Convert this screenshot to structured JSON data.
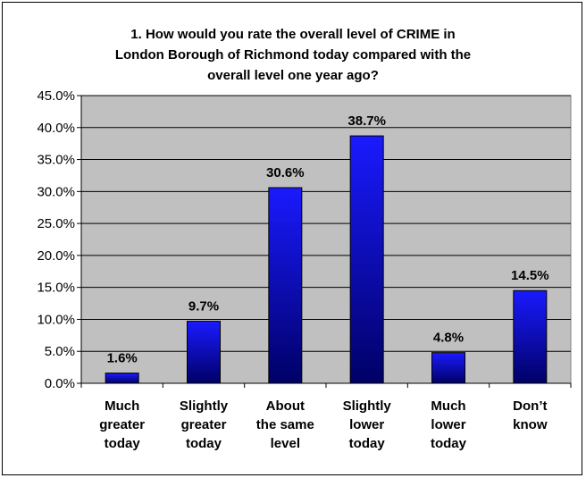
{
  "chart_data": {
    "type": "bar",
    "title_lines": [
      "1. How would you rate the overall level of CRIME in",
      "London Borough of Richmond today compared with the",
      "overall level one year ago?"
    ],
    "categories": [
      [
        "Much",
        "greater",
        "today"
      ],
      [
        "Slightly",
        "greater",
        "today"
      ],
      [
        "About",
        "the same",
        "level"
      ],
      [
        "Slightly",
        "lower",
        "today"
      ],
      [
        "Much",
        "lower",
        "today"
      ],
      [
        "Don’t",
        "know"
      ]
    ],
    "values": [
      1.6,
      9.7,
      30.6,
      38.7,
      4.8,
      14.5
    ],
    "data_labels": [
      "1.6%",
      "9.7%",
      "30.6%",
      "38.7%",
      "4.8%",
      "14.5%"
    ],
    "ylim": [
      0,
      45
    ],
    "yticks": [
      0,
      5,
      10,
      15,
      20,
      25,
      30,
      35,
      40,
      45
    ],
    "ytick_labels": [
      "0.0%",
      "5.0%",
      "10.0%",
      "15.0%",
      "20.0%",
      "25.0%",
      "30.0%",
      "35.0%",
      "40.0%",
      "45.0%"
    ],
    "grid": true,
    "legend": "none",
    "colors": {
      "plot_background": "#c0c0c0",
      "bar_top": "#1a1aff",
      "bar_bottom": "#000066",
      "gridline": "#000000"
    }
  }
}
